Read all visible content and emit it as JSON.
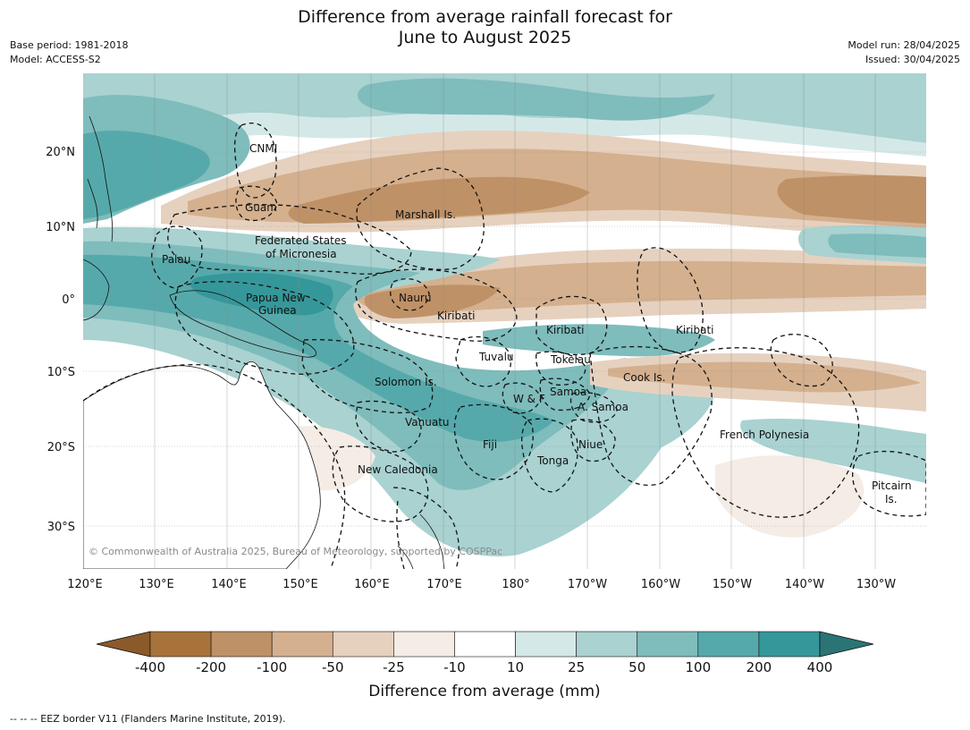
{
  "title": {
    "line1": "Difference from average rainfall forecast for",
    "line2": "June to August 2025"
  },
  "meta_left": {
    "base_period": "Base period: 1981-2018",
    "model": "Model: ACCESS-S2"
  },
  "meta_right": {
    "model_run": "Model run: 28/04/2025",
    "issued": "Issued: 30/04/2025"
  },
  "map": {
    "lat_labels": [
      "20°N",
      "10°N",
      "0°",
      "10°S",
      "20°S",
      "30°S"
    ],
    "lon_labels": [
      "120°E",
      "130°E",
      "140°E",
      "150°E",
      "160°E",
      "170°E",
      "180°",
      "170°W",
      "160°W",
      "150°W",
      "140°W",
      "130°W"
    ],
    "regions": [
      "CNMI",
      "Guam",
      "Marshall Is.",
      "Federated States",
      "of Micronesia",
      "Palau",
      "Papua New",
      "Guinea",
      "Nauru",
      "Kiribati",
      "Kiribati",
      "Kiribati",
      "Tuvalu",
      "Tokelau",
      "Solomon Is.",
      "Samoa",
      "W & F",
      "A. Samoa",
      "Cook Is.",
      "Vanuatu",
      "Fiji",
      "Niue",
      "Tonga",
      "French Polynesia",
      "New Caledonia",
      "Pitcairn",
      "Is."
    ],
    "copyright": "© Commonwealth of Australia 2025, Bureau of Meteorology, supported by COSPPac"
  },
  "colorbar": {
    "ticks": [
      "-400",
      "-200",
      "-100",
      "-50",
      "-25",
      "-10",
      "10",
      "25",
      "50",
      "100",
      "200",
      "400"
    ],
    "colors": [
      "#8b5a2b",
      "#a8733b",
      "#bf9167",
      "#d4b08e",
      "#e6d1bf",
      "#f4ece5",
      "#ffffff",
      "#d4e9e7",
      "#a9d2d1",
      "#7fbcbc",
      "#56a9aa",
      "#35979a",
      "#2b7475"
    ],
    "title": "Difference from average (mm)"
  },
  "footer": "-- -- -- EEZ border V11 (Flanders Marine Institute, 2019)."
}
